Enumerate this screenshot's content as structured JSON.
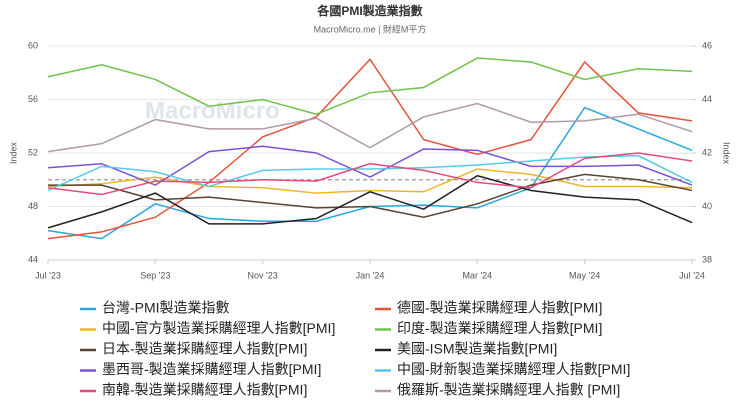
{
  "chart_data": {
    "type": "line",
    "title": "各國PMI製造業指數",
    "subtitle": "MacroMicro.me | 財經M平方",
    "watermark": "MacroMicro",
    "y_label": "Index",
    "y2_label": "Index",
    "categories": [
      "Jul '23",
      null,
      "Sep '23",
      null,
      "Nov '23",
      null,
      "Jan '24",
      null,
      "Mar '24",
      null,
      "May '24",
      null,
      "Jul '24"
    ],
    "ylim": [
      44,
      60
    ],
    "yticks": [
      44,
      48,
      52,
      56,
      60
    ],
    "y2lim": [
      38,
      46
    ],
    "y2ticks": [
      38,
      40,
      42,
      44,
      46
    ],
    "reference_line": 50,
    "legend": "bottom",
    "series": [
      {
        "name": "台灣-PMI製造業指數",
        "color": "#2aa6dd",
        "values": [
          46.2,
          45.6,
          48.2,
          47.1,
          46.9,
          46.9,
          48.0,
          48.1,
          47.9,
          49.4,
          55.4,
          53.8,
          52.2
        ]
      },
      {
        "name": "德國-製造業採購經理人指數[PMI]",
        "color": "#e5533a",
        "values": [
          45.6,
          46.1,
          47.2,
          49.8,
          53.2,
          54.7,
          59.0,
          53.0,
          51.9,
          53.0,
          58.8,
          55.0,
          54.4
        ]
      },
      {
        "name": "中國-官方製造業採購經理人指數[PMI]",
        "color": "#efb52a",
        "values": [
          49.5,
          49.7,
          50.2,
          49.5,
          49.4,
          49.0,
          49.2,
          49.1,
          50.8,
          50.4,
          49.5,
          49.5,
          49.4
        ]
      },
      {
        "name": "印度-製造業採購經理人指數[PMI]",
        "color": "#72c24a",
        "values": [
          57.7,
          58.6,
          57.5,
          55.5,
          56.0,
          54.9,
          56.5,
          56.9,
          59.1,
          58.8,
          57.5,
          58.3,
          58.1
        ]
      },
      {
        "name": "日本-製造業採購經理人指數[PMI]",
        "color": "#5b4331",
        "values": [
          49.6,
          49.6,
          48.5,
          48.7,
          48.3,
          47.9,
          48.0,
          47.2,
          48.2,
          49.6,
          50.4,
          50.0,
          49.2
        ]
      },
      {
        "name": "美國-ISM製造業指數[PMI]",
        "color": "#222222",
        "values": [
          46.4,
          47.6,
          49.0,
          46.7,
          46.7,
          47.1,
          49.1,
          47.8,
          50.3,
          49.2,
          48.7,
          48.5,
          46.8
        ]
      },
      {
        "name": "墨西哥-製造業採購經理人指數[PMI]",
        "color": "#7b52d6",
        "values": [
          50.9,
          51.2,
          49.6,
          52.1,
          52.5,
          52.0,
          50.2,
          52.3,
          52.2,
          51.0,
          51.0,
          51.1,
          49.6
        ]
      },
      {
        "name": "中國-財新製造業採購經理人指數[PMI]",
        "color": "#58c8e8",
        "values": [
          49.2,
          51.0,
          50.6,
          49.5,
          50.7,
          50.8,
          50.8,
          50.9,
          51.1,
          51.4,
          51.7,
          51.8,
          49.8
        ]
      },
      {
        "name": "南韓-製造業採購經理人指數[PMI]",
        "color": "#e74a7a",
        "values": [
          49.4,
          48.9,
          49.9,
          49.8,
          50.0,
          49.9,
          51.2,
          50.7,
          49.8,
          49.4,
          51.6,
          52.0,
          51.4
        ]
      },
      {
        "name": "俄羅斯-製造業採購經理人指數 [PMI]",
        "color": "#b09aa8",
        "values": [
          52.1,
          52.7,
          54.5,
          53.8,
          53.8,
          54.6,
          52.4,
          54.7,
          55.7,
          54.3,
          54.4,
          54.9,
          53.6
        ]
      }
    ]
  }
}
